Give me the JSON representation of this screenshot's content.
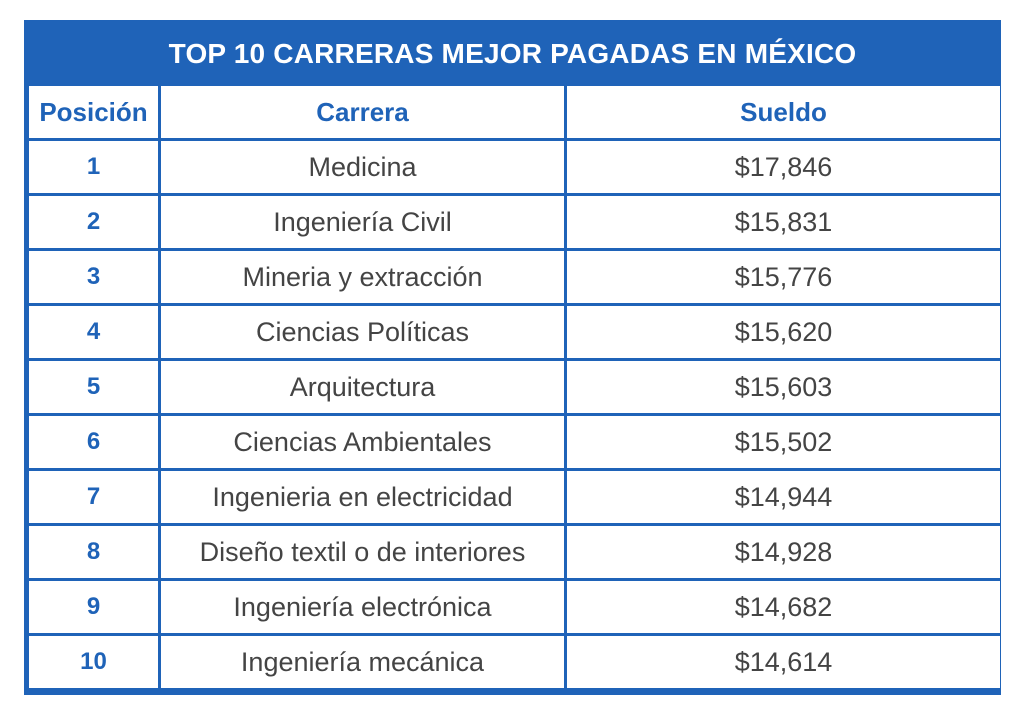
{
  "title": "TOP 10 CARRERAS MEJOR PAGADAS EN MÉXICO",
  "columns": [
    "Posición",
    "Carrera",
    "Sueldo"
  ],
  "rows": [
    {
      "pos": "1",
      "career": "Medicina",
      "salary": "$17,846"
    },
    {
      "pos": "2",
      "career": "Ingeniería Civil",
      "salary": "$15,831"
    },
    {
      "pos": "3",
      "career": "Mineria y extracción",
      "salary": "$15,776"
    },
    {
      "pos": "4",
      "career": "Ciencias Políticas",
      "salary": "$15,620"
    },
    {
      "pos": "5",
      "career": "Arquitectura",
      "salary": "$15,603"
    },
    {
      "pos": "6",
      "career": "Ciencias Ambientales",
      "salary": "$15,502"
    },
    {
      "pos": "7",
      "career": "Ingenieria en electricidad",
      "salary": "$14,944"
    },
    {
      "pos": "8",
      "career": "Diseño textil o de interiores",
      "salary": "$14,928"
    },
    {
      "pos": "9",
      "career": "Ingeniería electrónica",
      "salary": "$14,682"
    },
    {
      "pos": "10",
      "career": "Ingeniería mecánica",
      "salary": "$14,614"
    }
  ],
  "colors": {
    "accent": "#1f63b8",
    "text": "#444444",
    "background": "#ffffff"
  }
}
